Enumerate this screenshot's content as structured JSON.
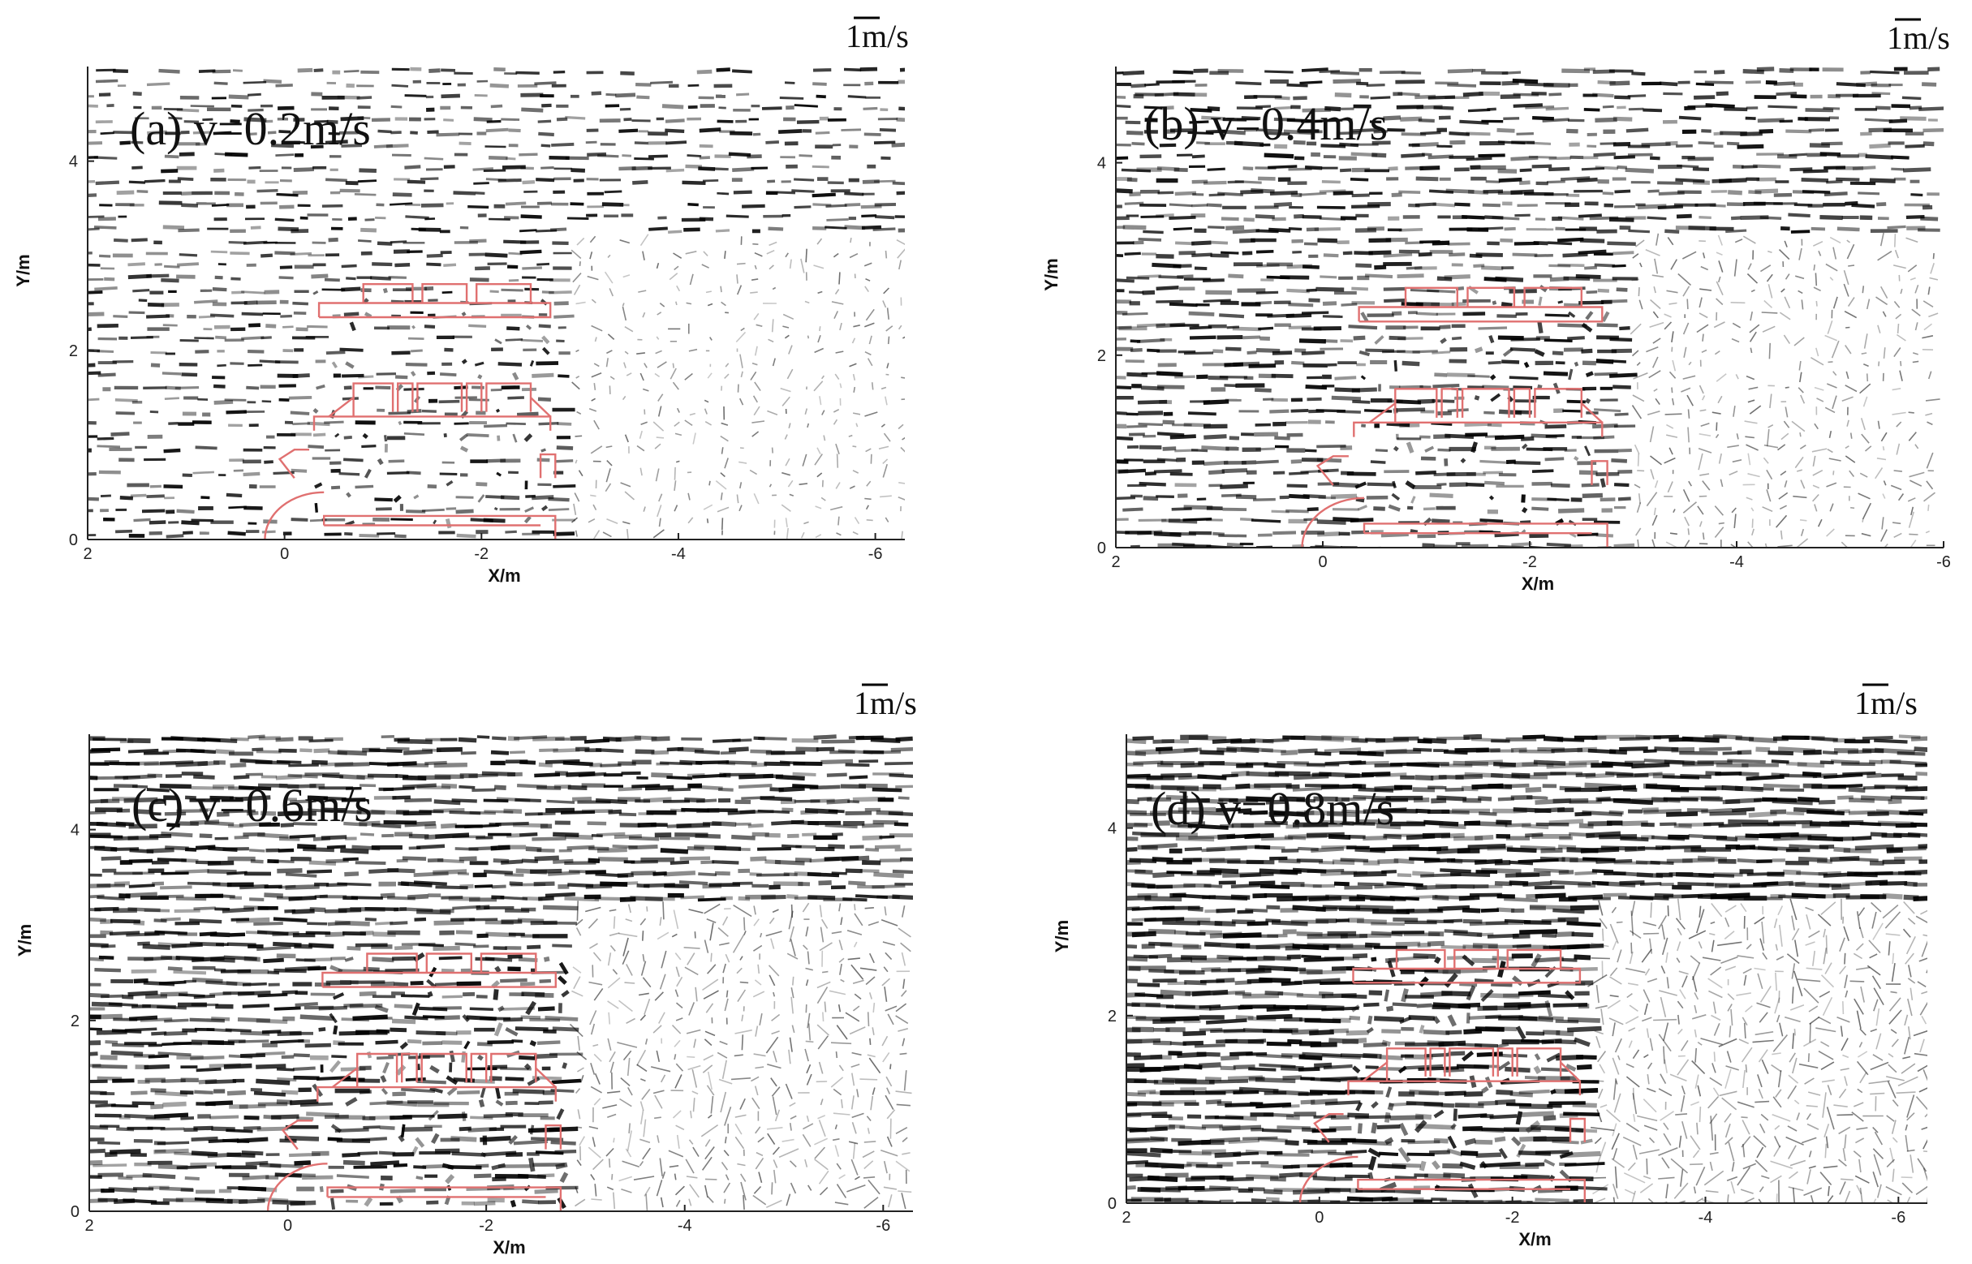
{
  "chart_data": [
    {
      "type": "vector-field",
      "panel_label": "(a)  v=0.2m/s",
      "speed": 0.2,
      "xlabel": "X/m",
      "ylabel": "Y/m",
      "xlim": [
        2,
        -6.3
      ],
      "ylim": [
        0,
        5
      ],
      "xticks": [
        2,
        0,
        -2,
        -4,
        -6
      ],
      "yticks": [
        0,
        2,
        4
      ],
      "reference_vector": "1m/s",
      "outline_color": "#e07070"
    },
    {
      "type": "vector-field",
      "panel_label": "(b)  v=0.4m/s",
      "speed": 0.4,
      "xlabel": "X/m",
      "ylabel": "Y/m",
      "xlim": [
        2,
        -6
      ],
      "ylim": [
        0,
        5
      ],
      "xticks": [
        2,
        0,
        -2,
        -4,
        -6
      ],
      "yticks": [
        0,
        2,
        4
      ],
      "reference_vector": "1m/s",
      "outline_color": "#e07070"
    },
    {
      "type": "vector-field",
      "panel_label": "(c)  v=0.6m/s",
      "speed": 0.6,
      "xlabel": "X/m",
      "ylabel": "Y/m",
      "xlim": [
        2,
        -6.3
      ],
      "ylim": [
        0,
        5
      ],
      "xticks": [
        2,
        0,
        -2,
        -4,
        -6
      ],
      "yticks": [
        0,
        2,
        4
      ],
      "reference_vector": "1m/s",
      "outline_color": "#e07070"
    },
    {
      "type": "vector-field",
      "panel_label": "(d)  v=0.8m/s",
      "speed": 0.8,
      "xlabel": "X/m",
      "ylabel": "Y/m",
      "xlim": [
        2,
        -6.3
      ],
      "ylim": [
        0,
        5
      ],
      "xticks": [
        2,
        0,
        -2,
        -4,
        -6
      ],
      "yticks": [
        0,
        2,
        4
      ],
      "reference_vector": "1m/s",
      "outline_color": "#e07070"
    }
  ]
}
